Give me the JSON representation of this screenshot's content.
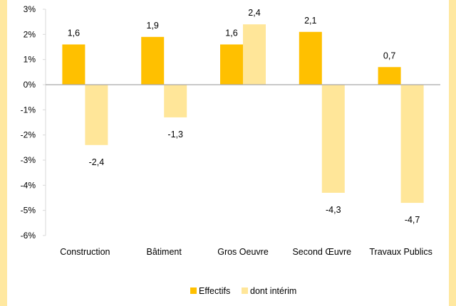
{
  "colors": {
    "frame": "#FFE8A0",
    "effectifs": "#FFC000",
    "interim": "#FFE699",
    "zero_line": "#A6A6A6",
    "axis": "#D9D9D9",
    "label": "#000000"
  },
  "chart_data": {
    "type": "bar",
    "title": "",
    "xlabel": "",
    "ylabel": "",
    "categories": [
      "Construction",
      "Bâtiment",
      "Gros Oeuvre",
      "Second Œuvre",
      "Travaux Publics"
    ],
    "series": [
      {
        "name": "Effectifs",
        "values": [
          1.6,
          1.9,
          1.6,
          2.1,
          0.7
        ],
        "labels": [
          "1,6",
          "1,9",
          "1,6",
          "2,1",
          "0,7"
        ]
      },
      {
        "name": "dont intérim",
        "values": [
          -2.4,
          -1.3,
          2.4,
          -4.3,
          -4.7
        ],
        "labels": [
          "-2,4",
          "-1,3",
          "2,4",
          "-4,3",
          "-4,7"
        ]
      }
    ],
    "ylim": [
      -6,
      3
    ],
    "yticks": [
      3,
      2,
      1,
      0,
      -1,
      -2,
      -3,
      -4,
      -5,
      -6
    ],
    "ytick_labels": [
      "3%",
      "2%",
      "1%",
      "0%",
      "-1%",
      "-2%",
      "-3%",
      "-4%",
      "-5%",
      "-6%"
    ],
    "grid": false,
    "legend": {
      "position": "bottom",
      "entries": [
        "Effectifs",
        "dont intérim"
      ]
    }
  }
}
